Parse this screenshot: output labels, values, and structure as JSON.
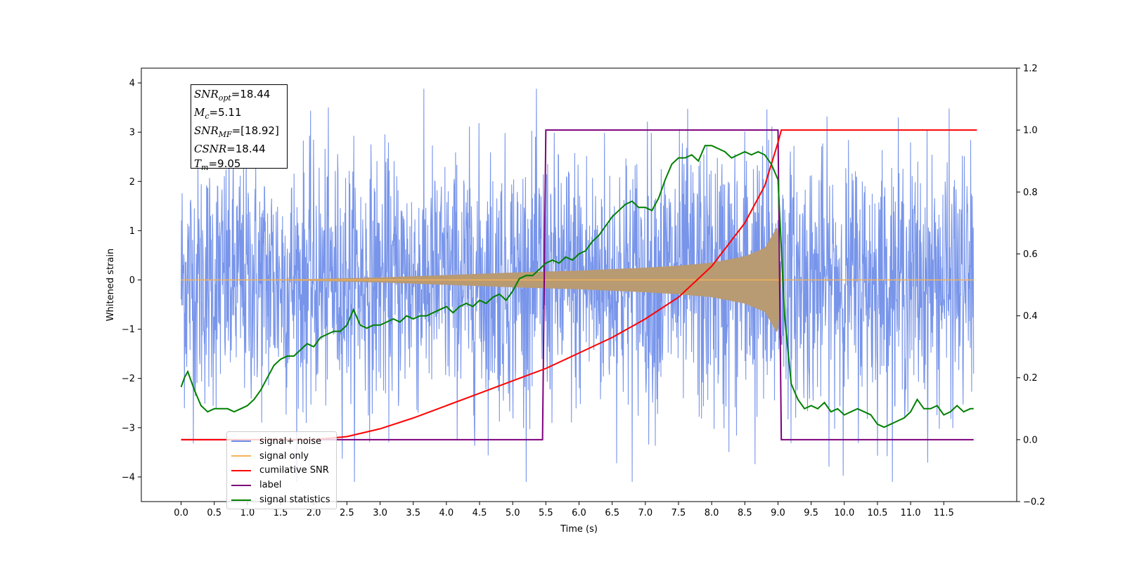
{
  "chart_data": {
    "type": "line",
    "xlabel": "Time (s)",
    "ylabel": "Whitened strain",
    "xlim": [
      -0.6,
      12.6
    ],
    "ylim": [
      -4.5,
      4.3
    ],
    "y2lim": [
      -0.2,
      1.2
    ],
    "x_ticks": [
      0.0,
      0.5,
      1.0,
      1.5,
      2.0,
      2.5,
      3.0,
      3.5,
      4.0,
      4.5,
      5.0,
      5.5,
      6.0,
      6.5,
      7.0,
      7.5,
      8.0,
      8.5,
      9.0,
      9.5,
      10.0,
      10.5,
      11.0,
      11.5
    ],
    "x_tick_labels": [
      "0.0",
      "0.5",
      "1.0",
      "1.5",
      "2.0",
      "2.5",
      "3.0",
      "3.5",
      "4.0",
      "4.5",
      "5.0",
      "5.5",
      "6.0",
      "6.5",
      "7.0",
      "7.5",
      "8.0",
      "8.5",
      "9.0",
      "9.5",
      "10.0",
      "10.5",
      "11.0",
      "11.5"
    ],
    "y_ticks": [
      4,
      3,
      2,
      1,
      0,
      -1,
      -2,
      -3,
      -4
    ],
    "y_tick_labels": [
      "4",
      "3",
      "2",
      "1",
      "0",
      "−1",
      "−2",
      "−3",
      "−4"
    ],
    "y2_ticks": [
      1.2,
      1.0,
      0.8,
      0.6,
      0.4,
      0.2,
      0.0,
      -0.2
    ],
    "y2_tick_labels": [
      "1.2",
      "1.0",
      "0.8",
      "0.6",
      "0.4",
      "0.2",
      "0.0",
      "−0.2"
    ],
    "grid": false,
    "legend_position": "lower-left",
    "series": [
      {
        "name": "signal+ noise",
        "axis": "left",
        "color": "#6c8ce8",
        "description_values": "white-noise band approx. ±2.5 with peaks to about ±3.9",
        "envelope_x": [
          0.0,
          2.0,
          4.0,
          5.5,
          7.0,
          8.0,
          8.5,
          9.0,
          9.05,
          10.0,
          12.0
        ],
        "envelope_amplitude": [
          2.3,
          2.3,
          2.3,
          2.4,
          2.45,
          2.5,
          2.55,
          2.8,
          2.3,
          2.3,
          2.3
        ],
        "peak_max": 3.88,
        "peak_min": -4.1
      },
      {
        "name": "signal only",
        "axis": "left",
        "color": "#f5b35a",
        "envelope_x": [
          0.0,
          1.0,
          2.0,
          3.0,
          4.0,
          5.0,
          6.0,
          7.0,
          7.5,
          8.0,
          8.5,
          8.8,
          9.0,
          9.05,
          12.0
        ],
        "envelope_amplitude": [
          0.0,
          0.005,
          0.02,
          0.05,
          0.1,
          0.15,
          0.19,
          0.25,
          0.29,
          0.35,
          0.48,
          0.65,
          1.1,
          0.0,
          0.0
        ]
      },
      {
        "name": "cumilative SNR",
        "axis": "right",
        "color": "#ff0000",
        "x": [
          0.0,
          1.0,
          2.0,
          2.5,
          3.0,
          3.5,
          4.0,
          4.5,
          5.0,
          5.5,
          6.0,
          6.5,
          7.0,
          7.5,
          8.0,
          8.5,
          8.8,
          9.0,
          9.05,
          12.0
        ],
        "y": [
          0.0,
          0.0,
          0.0,
          0.01,
          0.035,
          0.07,
          0.11,
          0.15,
          0.19,
          0.23,
          0.28,
          0.33,
          0.39,
          0.46,
          0.56,
          0.7,
          0.82,
          0.96,
          1.0,
          1.0
        ]
      },
      {
        "name": "label",
        "axis": "right",
        "color": "#7d007d",
        "x": [
          0.0,
          5.45,
          5.5,
          9.0,
          9.05,
          11.95
        ],
        "y": [
          0.0,
          0.0,
          1.0,
          1.0,
          0.0,
          0.0
        ]
      },
      {
        "name": "signal statistics",
        "axis": "right",
        "color": "#008000",
        "x": [
          0.0,
          0.05,
          0.1,
          0.2,
          0.3,
          0.4,
          0.5,
          0.6,
          0.7,
          0.8,
          0.9,
          1.0,
          1.1,
          1.2,
          1.3,
          1.4,
          1.5,
          1.6,
          1.7,
          1.8,
          1.9,
          2.0,
          2.1,
          2.2,
          2.3,
          2.4,
          2.5,
          2.6,
          2.7,
          2.8,
          2.9,
          3.0,
          3.1,
          3.2,
          3.3,
          3.4,
          3.5,
          3.6,
          3.7,
          3.8,
          3.9,
          4.0,
          4.1,
          4.2,
          4.3,
          4.4,
          4.5,
          4.6,
          4.7,
          4.8,
          4.9,
          5.0,
          5.1,
          5.2,
          5.3,
          5.4,
          5.5,
          5.6,
          5.7,
          5.8,
          5.9,
          6.0,
          6.1,
          6.2,
          6.3,
          6.4,
          6.5,
          6.6,
          6.7,
          6.8,
          6.9,
          7.0,
          7.1,
          7.2,
          7.3,
          7.4,
          7.5,
          7.6,
          7.7,
          7.8,
          7.9,
          8.0,
          8.1,
          8.2,
          8.3,
          8.4,
          8.5,
          8.6,
          8.7,
          8.8,
          8.9,
          9.0,
          9.05,
          9.1,
          9.2,
          9.3,
          9.4,
          9.5,
          9.6,
          9.7,
          9.8,
          9.9,
          10.0,
          10.1,
          10.2,
          10.3,
          10.4,
          10.5,
          10.6,
          10.7,
          10.8,
          10.9,
          11.0,
          11.1,
          11.2,
          11.3,
          11.4,
          11.5,
          11.6,
          11.7,
          11.8,
          11.9,
          11.95
        ],
        "y": [
          0.17,
          0.2,
          0.22,
          0.16,
          0.11,
          0.09,
          0.1,
          0.1,
          0.1,
          0.09,
          0.1,
          0.11,
          0.13,
          0.16,
          0.2,
          0.24,
          0.26,
          0.27,
          0.27,
          0.29,
          0.31,
          0.3,
          0.33,
          0.34,
          0.35,
          0.35,
          0.37,
          0.42,
          0.37,
          0.36,
          0.37,
          0.37,
          0.38,
          0.39,
          0.38,
          0.4,
          0.39,
          0.4,
          0.4,
          0.41,
          0.42,
          0.43,
          0.41,
          0.43,
          0.44,
          0.43,
          0.45,
          0.44,
          0.46,
          0.47,
          0.45,
          0.48,
          0.52,
          0.53,
          0.53,
          0.55,
          0.57,
          0.58,
          0.57,
          0.59,
          0.58,
          0.6,
          0.61,
          0.64,
          0.66,
          0.69,
          0.72,
          0.74,
          0.76,
          0.77,
          0.75,
          0.75,
          0.74,
          0.78,
          0.84,
          0.89,
          0.91,
          0.91,
          0.92,
          0.9,
          0.95,
          0.95,
          0.94,
          0.93,
          0.91,
          0.92,
          0.93,
          0.92,
          0.93,
          0.92,
          0.89,
          0.84,
          0.62,
          0.4,
          0.18,
          0.13,
          0.1,
          0.11,
          0.1,
          0.12,
          0.09,
          0.1,
          0.08,
          0.09,
          0.1,
          0.09,
          0.08,
          0.05,
          0.04,
          0.05,
          0.06,
          0.07,
          0.09,
          0.13,
          0.1,
          0.1,
          0.11,
          0.08,
          0.09,
          0.11,
          0.09,
          0.1,
          0.1
        ]
      }
    ],
    "legend": [
      "signal+ noise",
      "signal only",
      "cumilative SNR",
      "label",
      "signal statistics"
    ],
    "legend_hidden_text": "signal only"
  },
  "stats_box": {
    "snr_opt": {
      "sym": "SNR",
      "sub": "opt",
      "value": "=18.44"
    },
    "mc": {
      "sym": "M",
      "sub": "c",
      "value": "=5.11"
    },
    "snr_mf": {
      "sym": "SNR",
      "sub": "MF",
      "value": "=[18.92]"
    },
    "csnr": {
      "sym": "CSNR",
      "sub": "",
      "value": "=18.44"
    },
    "tm": {
      "sym": "T",
      "sub": "m",
      "value": "=9.05"
    }
  },
  "colors": {
    "noise": "#6c8ce8",
    "signal": "#f5b35a",
    "signal_overlap": "#b89a73",
    "cumulative_snr": "#ff0000",
    "label": "#7d007d",
    "statistics": "#008000"
  }
}
